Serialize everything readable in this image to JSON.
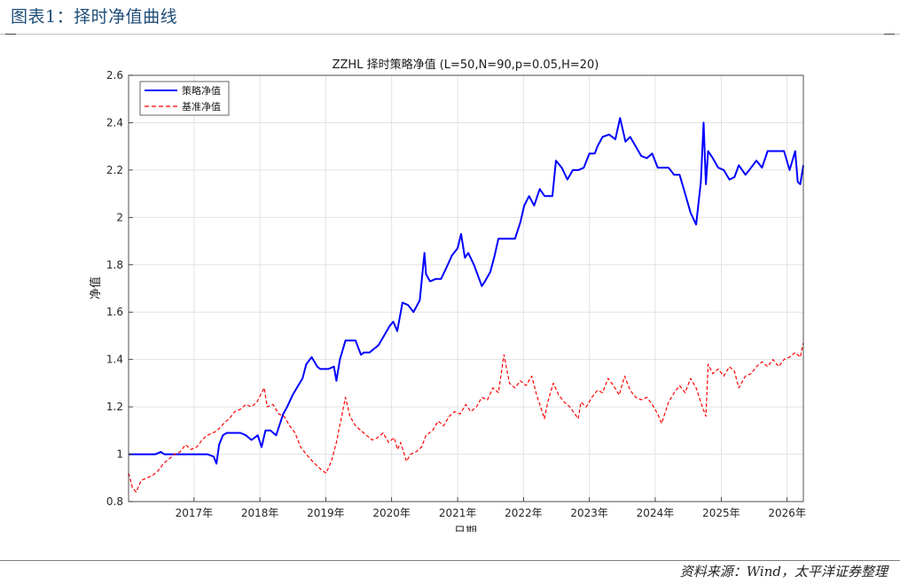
{
  "header": {
    "figure_title": "图表1：择时净值曲线"
  },
  "footer": {
    "source": "资料来源：Wind，太平洋证券整理"
  },
  "colors": {
    "strategy": "#0000ff",
    "benchmark": "#ff0000",
    "title_accent": "#1f4e79"
  },
  "chart_data": {
    "type": "line",
    "title": "ZZHL 择时策略净值 (L=50,N=90,p=0.05,H=20)",
    "xlabel": "日期",
    "ylabel": "净值",
    "xlim": [
      "2016-01-04",
      "2026-04-01"
    ],
    "ylim": [
      0.8,
      2.6
    ],
    "y_ticks": [
      "0.8",
      "1",
      "1.2",
      "1.4",
      "1.6",
      "1.8",
      "2",
      "2.2",
      "2.4",
      "2.6"
    ],
    "x_ticks": [
      {
        "date": "2017-01-01",
        "label": "2017年"
      },
      {
        "date": "2018-01-01",
        "label": "2018年"
      },
      {
        "date": "2019-01-01",
        "label": "2019年"
      },
      {
        "date": "2020-01-01",
        "label": "2020年"
      },
      {
        "date": "2021-01-01",
        "label": "2021年"
      },
      {
        "date": "2022-01-01",
        "label": "2022年"
      },
      {
        "date": "2023-01-01",
        "label": "2023年"
      },
      {
        "date": "2024-01-01",
        "label": "2024年"
      },
      {
        "date": "2025-01-01",
        "label": "2025年"
      },
      {
        "date": "2026-01-01",
        "label": "2026年"
      }
    ],
    "grid": true,
    "legend_position": "top-left",
    "series": [
      {
        "name": "策略净值",
        "style": "solid",
        "x": [
          "2016-01-04",
          "2016-06-01",
          "2016-07-01",
          "2016-07-20",
          "2016-10-01",
          "2017-01-01",
          "2017-03-15",
          "2017-04-20",
          "2017-05-05",
          "2017-05-20",
          "2017-06-10",
          "2017-07-01",
          "2017-08-15",
          "2017-09-15",
          "2017-10-15",
          "2017-11-15",
          "2017-12-20",
          "2018-01-10",
          "2018-02-01",
          "2018-03-01",
          "2018-04-01",
          "2018-05-10",
          "2018-06-01",
          "2018-07-01",
          "2018-08-01",
          "2018-08-25",
          "2018-09-15",
          "2018-10-15",
          "2018-11-15",
          "2018-12-01",
          "2018-12-25",
          "2019-01-15",
          "2019-02-15",
          "2019-03-01",
          "2019-03-20",
          "2019-04-20",
          "2019-06-15",
          "2019-07-15",
          "2019-08-01",
          "2019-09-01",
          "2019-10-20",
          "2019-11-20",
          "2019-12-20",
          "2020-01-10",
          "2020-02-01",
          "2020-03-01",
          "2020-04-01",
          "2020-05-01",
          "2020-06-05",
          "2020-07-01",
          "2020-07-10",
          "2020-08-01",
          "2020-09-01",
          "2020-10-01",
          "2020-11-01",
          "2020-12-01",
          "2021-01-01",
          "2021-01-20",
          "2021-02-10",
          "2021-03-01",
          "2021-04-01",
          "2021-05-15",
          "2021-06-01",
          "2021-07-01",
          "2021-07-25",
          "2021-08-15",
          "2021-09-15",
          "2021-10-15",
          "2021-11-15",
          "2021-12-15",
          "2022-01-05",
          "2022-02-01",
          "2022-03-01",
          "2022-04-01",
          "2022-04-28",
          "2022-05-20",
          "2022-06-10",
          "2022-06-30",
          "2022-08-01",
          "2022-09-01",
          "2022-10-01",
          "2022-11-01",
          "2022-12-01",
          "2023-01-01",
          "2023-01-31",
          "2023-02-15",
          "2023-03-15",
          "2023-04-20",
          "2023-05-25",
          "2023-06-20",
          "2023-07-20",
          "2023-08-15",
          "2023-09-15",
          "2023-10-15",
          "2023-11-15",
          "2023-12-15",
          "2024-01-15",
          "2024-02-15",
          "2024-03-15",
          "2024-04-15",
          "2024-05-15",
          "2024-06-15",
          "2024-07-15",
          "2024-08-15",
          "2024-09-10",
          "2024-09-25",
          "2024-10-08",
          "2024-10-20",
          "2024-11-15",
          "2024-12-15",
          "2025-01-15",
          "2025-02-15",
          "2025-03-15",
          "2025-04-08",
          "2025-05-15",
          "2025-06-15",
          "2025-07-15",
          "2025-08-15",
          "2025-09-15",
          "2025-10-15",
          "2025-11-15",
          "2025-12-15",
          "2026-01-15",
          "2026-02-15",
          "2026-03-01",
          "2026-03-15",
          "2026-04-01"
        ],
        "values": [
          1.0,
          1.0,
          1.01,
          1.0,
          1.0,
          1.0,
          1.0,
          0.99,
          0.96,
          1.04,
          1.08,
          1.09,
          1.09,
          1.09,
          1.08,
          1.06,
          1.08,
          1.03,
          1.1,
          1.1,
          1.08,
          1.17,
          1.2,
          1.25,
          1.29,
          1.32,
          1.38,
          1.41,
          1.37,
          1.36,
          1.36,
          1.36,
          1.37,
          1.31,
          1.4,
          1.48,
          1.48,
          1.42,
          1.43,
          1.43,
          1.46,
          1.5,
          1.54,
          1.56,
          1.52,
          1.64,
          1.63,
          1.6,
          1.65,
          1.85,
          1.76,
          1.73,
          1.74,
          1.74,
          1.79,
          1.84,
          1.87,
          1.93,
          1.83,
          1.85,
          1.8,
          1.71,
          1.73,
          1.77,
          1.84,
          1.91,
          1.91,
          1.91,
          1.91,
          1.98,
          2.05,
          2.09,
          2.05,
          2.12,
          2.09,
          2.09,
          2.09,
          2.24,
          2.21,
          2.16,
          2.2,
          2.2,
          2.21,
          2.27,
          2.27,
          2.3,
          2.34,
          2.35,
          2.33,
          2.42,
          2.32,
          2.34,
          2.3,
          2.26,
          2.25,
          2.27,
          2.21,
          2.21,
          2.21,
          2.18,
          2.18,
          2.1,
          2.02,
          1.97,
          2.15,
          2.4,
          2.14,
          2.28,
          2.25,
          2.21,
          2.2,
          2.16,
          2.17,
          2.22,
          2.18,
          2.21,
          2.24,
          2.21,
          2.28,
          2.28,
          2.28,
          2.28,
          2.2,
          2.28,
          2.15,
          2.14,
          2.22
        ]
      },
      {
        "name": "基准净值",
        "style": "dashed",
        "x": [
          "2016-01-04",
          "2016-01-25",
          "2016-02-15",
          "2016-03-15",
          "2016-04-15",
          "2016-05-15",
          "2016-06-15",
          "2016-07-15",
          "2016-08-15",
          "2016-09-15",
          "2016-10-15",
          "2016-11-15",
          "2016-12-15",
          "2017-01-15",
          "2017-02-15",
          "2017-03-15",
          "2017-04-15",
          "2017-05-10",
          "2017-06-15",
          "2017-07-15",
          "2017-08-15",
          "2017-09-15",
          "2017-10-15",
          "2017-11-15",
          "2017-12-15",
          "2018-01-25",
          "2018-02-10",
          "2018-03-15",
          "2018-04-15",
          "2018-05-15",
          "2018-06-15",
          "2018-07-15",
          "2018-08-15",
          "2018-09-15",
          "2018-10-20",
          "2018-11-15",
          "2018-12-15",
          "2019-01-03",
          "2019-02-01",
          "2019-03-01",
          "2019-04-20",
          "2019-05-15",
          "2019-06-15",
          "2019-07-15",
          "2019-08-15",
          "2019-09-15",
          "2019-10-15",
          "2019-11-15",
          "2019-12-15",
          "2020-01-15",
          "2020-02-03",
          "2020-02-20",
          "2020-03-23",
          "2020-04-15",
          "2020-05-15",
          "2020-06-15",
          "2020-07-10",
          "2020-08-15",
          "2020-09-15",
          "2020-10-15",
          "2020-11-15",
          "2020-12-15",
          "2021-01-15",
          "2021-02-15",
          "2021-03-15",
          "2021-04-15",
          "2021-05-15",
          "2021-06-15",
          "2021-07-15",
          "2021-08-15",
          "2021-09-15",
          "2021-10-15",
          "2021-11-15",
          "2021-12-15",
          "2022-01-15",
          "2022-02-15",
          "2022-03-15",
          "2022-04-27",
          "2022-05-15",
          "2022-06-15",
          "2022-07-15",
          "2022-08-15",
          "2022-09-15",
          "2022-10-31",
          "2022-11-15",
          "2022-12-15",
          "2023-01-15",
          "2023-02-15",
          "2023-03-15",
          "2023-04-15",
          "2023-05-15",
          "2023-06-15",
          "2023-07-15",
          "2023-08-15",
          "2023-09-15",
          "2023-10-15",
          "2023-11-15",
          "2023-12-15",
          "2024-01-15",
          "2024-02-05",
          "2024-03-15",
          "2024-04-15",
          "2024-05-15",
          "2024-06-15",
          "2024-07-15",
          "2024-08-15",
          "2024-09-18",
          "2024-10-08",
          "2024-10-20",
          "2024-11-15",
          "2024-12-15",
          "2025-01-15",
          "2025-02-15",
          "2025-03-15",
          "2025-04-08",
          "2025-05-15",
          "2025-06-15",
          "2025-07-15",
          "2025-08-15",
          "2025-09-15",
          "2025-10-15",
          "2025-11-15",
          "2025-12-15",
          "2026-01-15",
          "2026-02-15",
          "2026-03-15",
          "2026-04-01"
        ],
        "values": [
          0.92,
          0.86,
          0.84,
          0.89,
          0.9,
          0.91,
          0.93,
          0.96,
          0.98,
          1.0,
          1.01,
          1.04,
          1.02,
          1.03,
          1.06,
          1.08,
          1.09,
          1.1,
          1.13,
          1.15,
          1.18,
          1.19,
          1.21,
          1.2,
          1.22,
          1.28,
          1.2,
          1.21,
          1.17,
          1.16,
          1.12,
          1.09,
          1.03,
          1.0,
          0.97,
          0.95,
          0.93,
          0.92,
          0.97,
          1.05,
          1.24,
          1.16,
          1.12,
          1.1,
          1.08,
          1.06,
          1.07,
          1.09,
          1.05,
          1.07,
          1.02,
          1.05,
          0.97,
          1.0,
          1.01,
          1.03,
          1.08,
          1.1,
          1.14,
          1.12,
          1.16,
          1.18,
          1.17,
          1.21,
          1.18,
          1.2,
          1.24,
          1.23,
          1.28,
          1.26,
          1.42,
          1.3,
          1.28,
          1.31,
          1.29,
          1.33,
          1.25,
          1.15,
          1.22,
          1.3,
          1.25,
          1.22,
          1.2,
          1.15,
          1.22,
          1.2,
          1.24,
          1.27,
          1.26,
          1.32,
          1.29,
          1.25,
          1.33,
          1.27,
          1.24,
          1.23,
          1.24,
          1.21,
          1.17,
          1.13,
          1.22,
          1.26,
          1.29,
          1.26,
          1.32,
          1.28,
          1.2,
          1.16,
          1.38,
          1.34,
          1.36,
          1.33,
          1.37,
          1.35,
          1.28,
          1.33,
          1.34,
          1.37,
          1.39,
          1.37,
          1.4,
          1.37,
          1.4,
          1.41,
          1.43,
          1.41,
          1.47
        ]
      }
    ]
  }
}
